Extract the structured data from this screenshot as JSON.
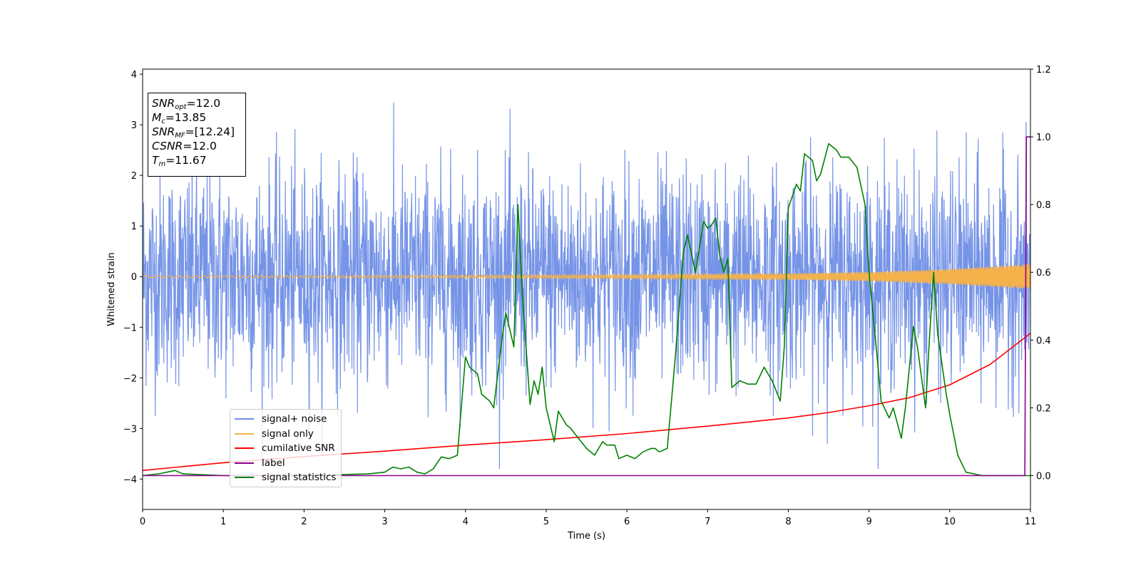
{
  "chart_data": {
    "type": "line",
    "title": "",
    "xlabel": "Time (s)",
    "ylabel": "Whitened strain",
    "xlim": [
      0,
      11
    ],
    "ylim_left": [
      -4.6,
      4.1
    ],
    "ylim_right": [
      -0.1,
      1.2
    ],
    "x_ticks": [
      "0",
      "1",
      "2",
      "3",
      "4",
      "5",
      "6",
      "7",
      "8",
      "9",
      "10",
      "11"
    ],
    "y_ticks_left": [
      "4",
      "3",
      "2",
      "1",
      "0",
      "−1",
      "−2",
      "−3",
      "−4"
    ],
    "y_ticks_left_values": [
      4,
      3,
      2,
      1,
      0,
      -1,
      -2,
      -3,
      -4
    ],
    "y_ticks_right": [
      "1.2",
      "1.0",
      "0.8",
      "0.6",
      "0.4",
      "0.2",
      "0.0"
    ],
    "y_ticks_right_values": [
      1.2,
      1.0,
      0.8,
      0.6,
      0.4,
      0.2,
      0.0
    ],
    "grid": false,
    "legend_position": "lower-left",
    "info_box": [
      {
        "sym": "SNR",
        "sub": "opt",
        "value": "=12.0"
      },
      {
        "sym": "M",
        "sub": "c",
        "value": "=13.85"
      },
      {
        "sym": "SNR",
        "sub": "MF",
        "value": "=[12.24]"
      },
      {
        "sym": "CSNR",
        "sub": "",
        "value": "=12.0"
      },
      {
        "sym": "T",
        "sub": "m",
        "value": "=11.67"
      }
    ],
    "series": [
      {
        "name": "signal+ noise",
        "color": "#6f8ee6",
        "axis": "left",
        "description_values": {
          "mean": 0.0,
          "typical_range": [
            -2.6,
            2.5
          ],
          "peak_max": 3.65,
          "peak_min": -3.8
        }
      },
      {
        "name": "signal only",
        "color": "#f5b24a",
        "axis": "left",
        "envelope": {
          "x": [
            0,
            2,
            4,
            6,
            8,
            9,
            10,
            11
          ],
          "amplitude": [
            0.02,
            0.02,
            0.03,
            0.04,
            0.06,
            0.09,
            0.15,
            0.25
          ]
        }
      },
      {
        "name": "cumilative SNR",
        "color": "#ff0000",
        "axis": "right",
        "x": [
          0,
          1,
          2,
          3,
          4,
          5,
          6,
          7,
          8,
          8.5,
          9,
          9.5,
          10,
          10.5,
          11
        ],
        "y": [
          0.015,
          0.038,
          0.056,
          0.072,
          0.09,
          0.106,
          0.124,
          0.146,
          0.17,
          0.186,
          0.206,
          0.23,
          0.268,
          0.328,
          0.42
        ]
      },
      {
        "name": "label",
        "color": "#8b008b",
        "axis": "right",
        "x": [
          0,
          10.93,
          10.95,
          11
        ],
        "y": [
          0.0,
          0.0,
          1.0,
          1.0
        ]
      },
      {
        "name": "signal statistics",
        "color": "#008000",
        "axis": "right",
        "x": [
          0,
          0.2,
          0.4,
          0.5,
          1,
          2,
          2.8,
          3.0,
          3.1,
          3.2,
          3.3,
          3.4,
          3.5,
          3.6,
          3.7,
          3.8,
          3.9,
          4.0,
          4.05,
          4.15,
          4.2,
          4.3,
          4.35,
          4.45,
          4.5,
          4.6,
          4.65,
          4.7,
          4.8,
          4.85,
          4.9,
          4.95,
          5.0,
          5.1,
          5.15,
          5.25,
          5.3,
          5.4,
          5.5,
          5.6,
          5.7,
          5.75,
          5.8,
          5.85,
          5.9,
          6.0,
          6.1,
          6.2,
          6.3,
          6.35,
          6.4,
          6.5,
          6.6,
          6.7,
          6.75,
          6.85,
          6.95,
          7.0,
          7.05,
          7.1,
          7.15,
          7.2,
          7.25,
          7.3,
          7.4,
          7.5,
          7.6,
          7.7,
          7.8,
          7.9,
          7.95,
          8.0,
          8.1,
          8.15,
          8.2,
          8.3,
          8.35,
          8.4,
          8.5,
          8.6,
          8.65,
          8.75,
          8.85,
          8.95,
          9.0,
          9.1,
          9.15,
          9.25,
          9.3,
          9.4,
          9.45,
          9.55,
          9.6,
          9.7,
          9.75,
          9.8,
          9.85,
          9.95,
          10.0,
          10.1,
          10.2,
          10.4,
          11
        ],
        "y": [
          0.0,
          0.005,
          0.015,
          0.005,
          0.0,
          0.0,
          0.005,
          0.01,
          0.025,
          0.02,
          0.025,
          0.01,
          0.005,
          0.02,
          0.055,
          0.05,
          0.06,
          0.35,
          0.32,
          0.3,
          0.24,
          0.22,
          0.2,
          0.4,
          0.48,
          0.38,
          0.8,
          0.55,
          0.21,
          0.28,
          0.24,
          0.32,
          0.2,
          0.1,
          0.19,
          0.15,
          0.14,
          0.11,
          0.08,
          0.06,
          0.1,
          0.09,
          0.09,
          0.09,
          0.05,
          0.06,
          0.05,
          0.07,
          0.08,
          0.08,
          0.07,
          0.08,
          0.35,
          0.66,
          0.71,
          0.6,
          0.75,
          0.73,
          0.74,
          0.76,
          0.65,
          0.6,
          0.64,
          0.26,
          0.28,
          0.27,
          0.27,
          0.32,
          0.28,
          0.22,
          0.38,
          0.79,
          0.86,
          0.84,
          0.95,
          0.93,
          0.87,
          0.89,
          0.98,
          0.96,
          0.94,
          0.94,
          0.91,
          0.8,
          0.6,
          0.35,
          0.22,
          0.17,
          0.2,
          0.11,
          0.2,
          0.44,
          0.38,
          0.2,
          0.41,
          0.6,
          0.42,
          0.25,
          0.18,
          0.06,
          0.01,
          0.0,
          0.0
        ]
      }
    ]
  }
}
